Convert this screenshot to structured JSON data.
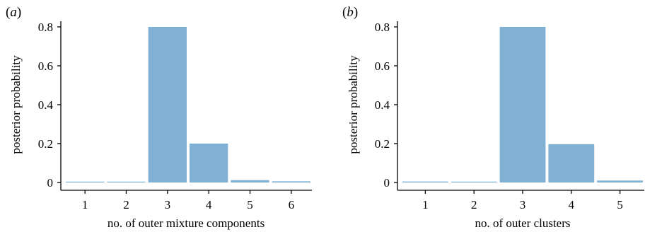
{
  "chart_data": [
    {
      "panel_label": "a",
      "type": "bar",
      "categories": [
        "1",
        "2",
        "3",
        "4",
        "5",
        "6"
      ],
      "values": [
        0.003,
        0.003,
        0.8,
        0.2,
        0.012,
        0.006
      ],
      "xlabel": "no. of outer mixture components",
      "ylabel": "posterior probability",
      "ylim": [
        0,
        0.8
      ],
      "yticks": [
        "0",
        "0.2",
        "0.4",
        "0.6",
        "0.8"
      ],
      "bar_color": "#80b0d3",
      "grid": false
    },
    {
      "panel_label": "b",
      "type": "bar",
      "categories": [
        "1",
        "2",
        "3",
        "4",
        "5"
      ],
      "values": [
        0.005,
        0.003,
        0.8,
        0.197,
        0.01
      ],
      "xlabel": "no. of outer clusters",
      "ylabel": "posterior probability",
      "ylim": [
        0,
        0.8
      ],
      "yticks": [
        "0",
        "0.2",
        "0.4",
        "0.6",
        "0.8"
      ],
      "bar_color": "#80b0d3",
      "grid": false
    }
  ]
}
